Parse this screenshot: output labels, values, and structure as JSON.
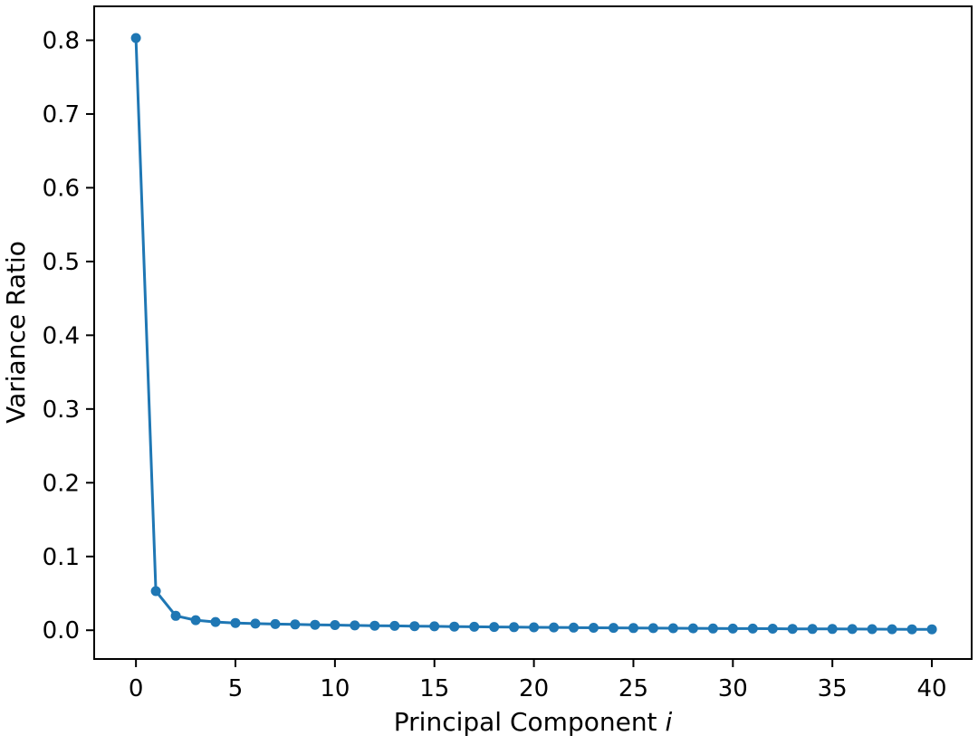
{
  "figure": {
    "xlabel_prefix": "Principal Component",
    "xlabel_var": "i",
    "ylabel": "Variance Ratio"
  },
  "colors": {
    "line": "#1f77b4",
    "axis": "#000000",
    "tick_text": "#000000",
    "background": "#ffffff"
  },
  "chart_data": {
    "type": "line",
    "title": "",
    "xlabel": "Principal Component i",
    "ylabel": "Variance Ratio",
    "legend": null,
    "grid": false,
    "marker": "circle",
    "line_color": "#1f77b4",
    "xlim": [
      -2.1,
      42.0
    ],
    "ylim": [
      -0.039,
      0.846
    ],
    "x_ticks": [
      0,
      5,
      10,
      15,
      20,
      25,
      30,
      35,
      40
    ],
    "x_tick_labels": [
      "0",
      "5",
      "10",
      "15",
      "20",
      "25",
      "30",
      "35",
      "40"
    ],
    "y_ticks": [
      0.0,
      0.1,
      0.2,
      0.3,
      0.4,
      0.5,
      0.6,
      0.7,
      0.8
    ],
    "y_tick_labels": [
      "0.0",
      "0.1",
      "0.2",
      "0.3",
      "0.4",
      "0.5",
      "0.6",
      "0.7",
      "0.8"
    ],
    "x": [
      0,
      1,
      2,
      3,
      4,
      5,
      6,
      7,
      8,
      9,
      10,
      11,
      12,
      13,
      14,
      15,
      16,
      17,
      18,
      19,
      20,
      21,
      22,
      23,
      24,
      25,
      26,
      27,
      28,
      29,
      30,
      31,
      32,
      33,
      34,
      35,
      36,
      37,
      38,
      39,
      40
    ],
    "values": [
      0.803,
      0.053,
      0.0196,
      0.0136,
      0.0112,
      0.0099,
      0.009,
      0.0084,
      0.0079,
      0.0074,
      0.007,
      0.0066,
      0.0062,
      0.0059,
      0.0056,
      0.0053,
      0.005,
      0.0047,
      0.0045,
      0.0042,
      0.004,
      0.0038,
      0.0036,
      0.0034,
      0.0032,
      0.003,
      0.0029,
      0.0027,
      0.0026,
      0.0024,
      0.0023,
      0.0022,
      0.0021,
      0.0019,
      0.0018,
      0.0017,
      0.0016,
      0.0015,
      0.0014,
      0.0013,
      0.0012
    ]
  }
}
